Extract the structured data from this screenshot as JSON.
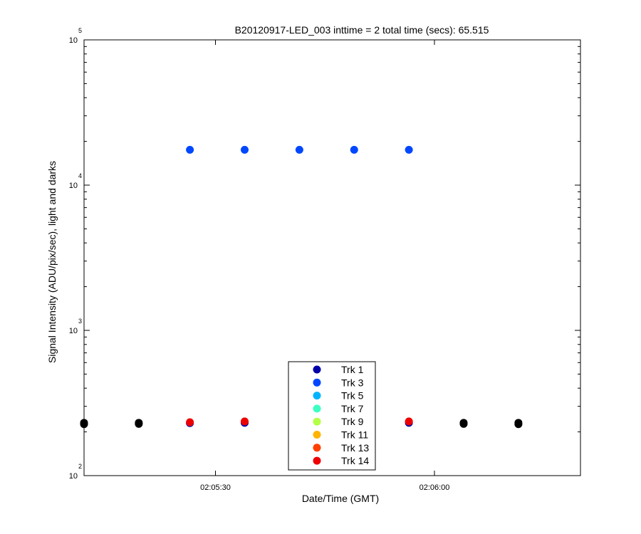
{
  "chart_data": {
    "type": "scatter",
    "title": "B20120917-LED_003 inttime = 2 total time (secs): 65.515",
    "xlabel": "Date/Time (GMT)",
    "ylabel": "Signal Intensity (ADU/pix/sec), light and darks",
    "yscale": "log",
    "ylim": [
      100,
      100000
    ],
    "xlim_seconds_of_day": [
      7512,
      7580
    ],
    "x_ticks": [
      {
        "value": 7530,
        "label": "02:05:30"
      },
      {
        "value": 7560,
        "label": "02:06:00"
      }
    ],
    "y_ticks": [
      {
        "value": 100,
        "base": "10",
        "exp": "2"
      },
      {
        "value": 1000,
        "base": "10",
        "exp": "3"
      },
      {
        "value": 10000,
        "base": "10",
        "exp": "4"
      },
      {
        "value": 100000,
        "base": "10",
        "exp": "5"
      }
    ],
    "legend_position": "bottom-center",
    "series": [
      {
        "name": "Trk 1",
        "color": "#0000a8",
        "x": [
          7526.5,
          7534.0,
          7541.5,
          7549.0,
          7556.5
        ],
        "y": [
          230,
          231,
          230,
          230,
          231
        ]
      },
      {
        "name": "Trk 3",
        "color": "#0047ff",
        "x": [
          7526.5,
          7534.0,
          7541.5,
          7549.0,
          7556.5
        ],
        "y": [
          17500,
          17500,
          17500,
          17500,
          17500
        ]
      },
      {
        "name": "Trk 5",
        "color": "#00b4ff",
        "x": [],
        "y": []
      },
      {
        "name": "Trk 7",
        "color": "#3cffc3",
        "x": [],
        "y": []
      },
      {
        "name": "Trk 9",
        "color": "#b4ff48",
        "x": [],
        "y": []
      },
      {
        "name": "Trk 11",
        "color": "#ffb400",
        "x": [],
        "y": []
      },
      {
        "name": "Trk 13",
        "color": "#ff4000",
        "x": [],
        "y": []
      },
      {
        "name": "Trk 14",
        "color": "#ee0000",
        "x": [
          7526.5,
          7534.0,
          7556.5
        ],
        "y": [
          233,
          236,
          236
        ]
      },
      {
        "name": "",
        "color": "#000000",
        "x": [
          7512.0,
          7512.0,
          7519.5,
          7519.5,
          7564.0,
          7564.0,
          7571.5,
          7571.5
        ],
        "y": [
          226,
          231,
          227,
          231,
          227,
          231,
          226,
          231
        ]
      }
    ]
  }
}
